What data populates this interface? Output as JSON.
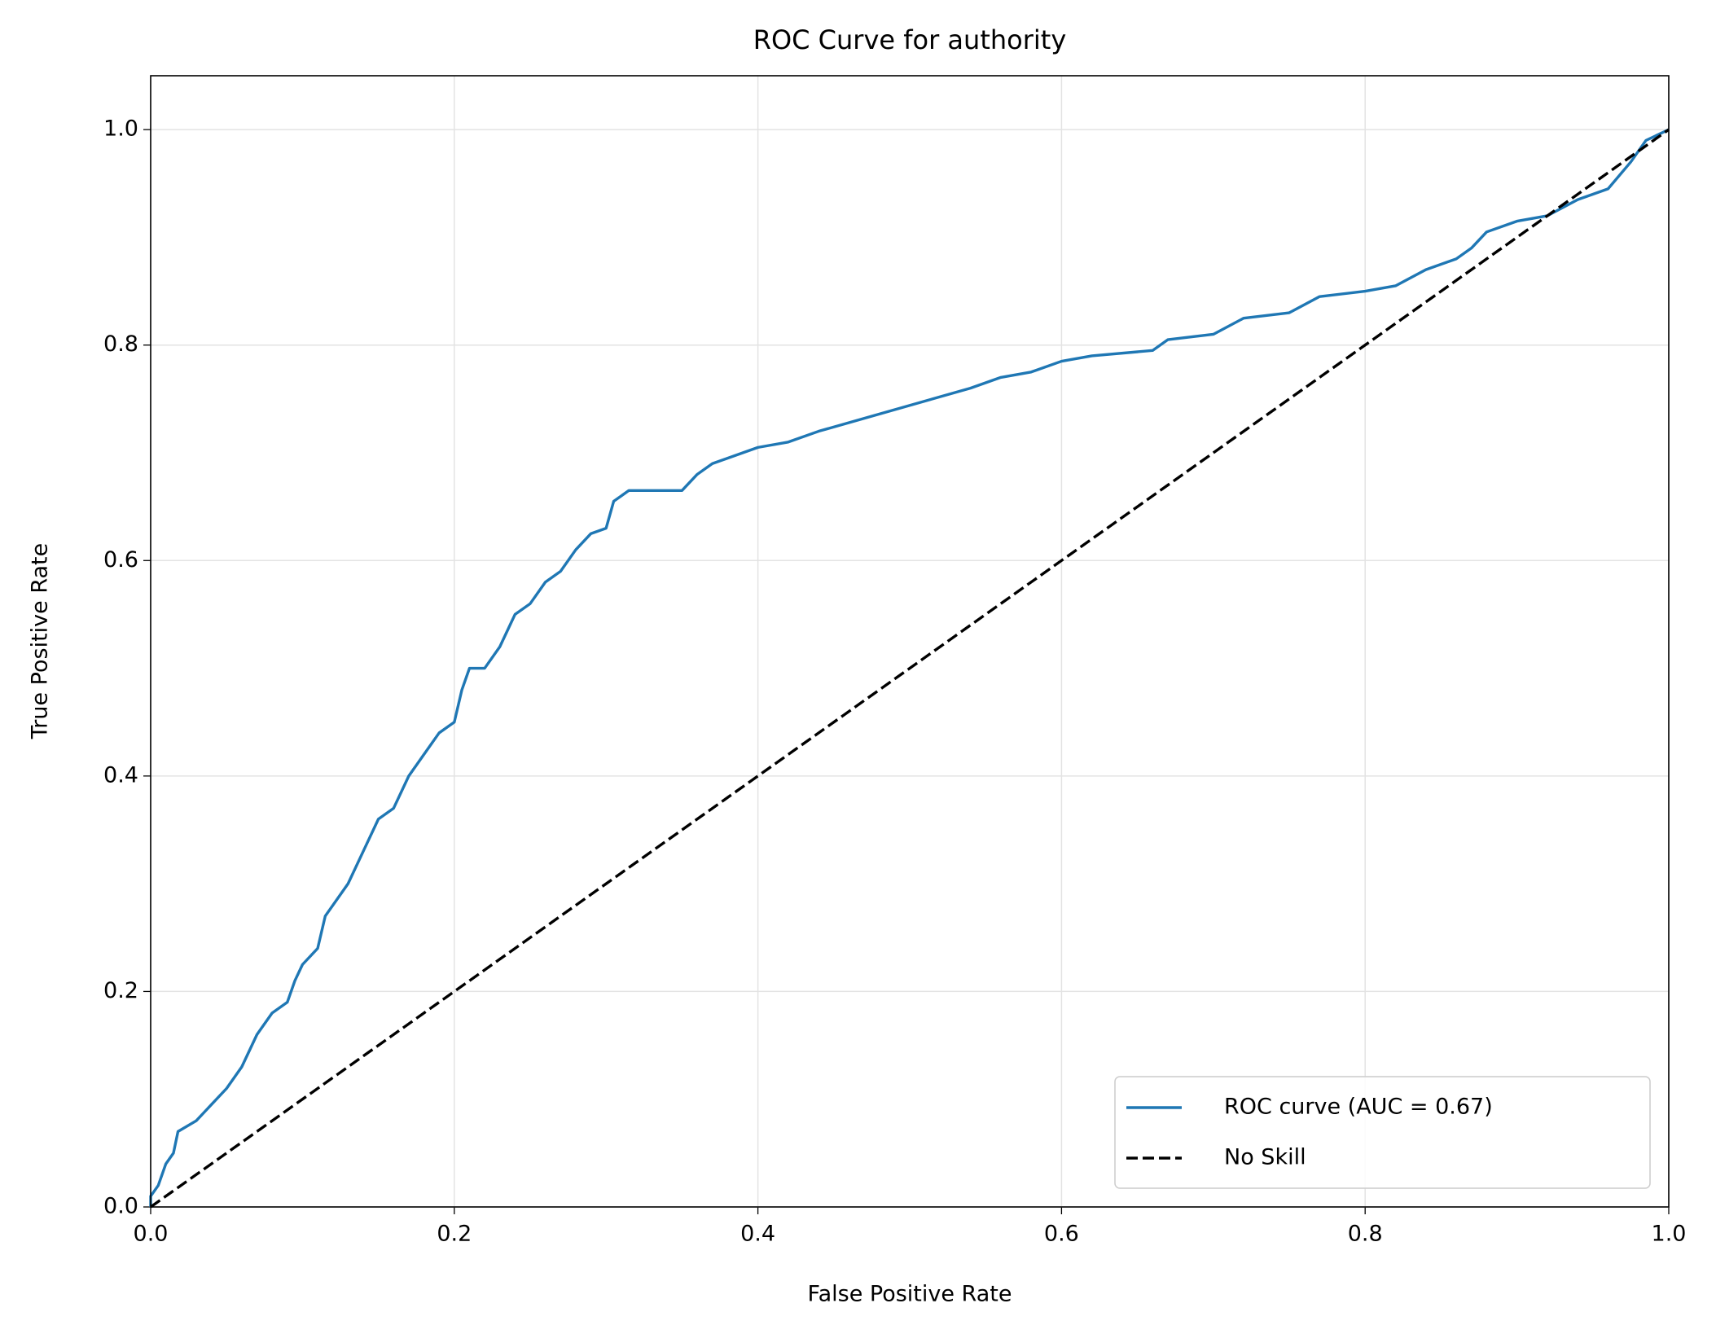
{
  "chart_data": {
    "type": "line",
    "title": "ROC Curve for authority",
    "x_label": "False Positive Rate",
    "y_label": "True Positive Rate",
    "xlim": [
      0,
      1
    ],
    "ylim": [
      0,
      1.05
    ],
    "xticks": [
      {
        "value": 0,
        "label": "0.0"
      },
      0.2,
      0.4,
      0.6,
      0.8,
      {
        "value": 1,
        "label": "1.0"
      }
    ],
    "yticks": [
      {
        "value": 0,
        "label": "0.0"
      },
      0.2,
      0.4,
      0.6,
      0.8,
      {
        "value": 1,
        "label": "1.0"
      }
    ],
    "grid": true,
    "legend": "lower right",
    "series": [
      {
        "name": "ROC curve (AUC = 0.67)",
        "color": "#1f77b4",
        "dash": "solid",
        "x": [
          0,
          0,
          0.005,
          0.01,
          0.015,
          0.018,
          0.03,
          0.04,
          0.05,
          0.06,
          0.07,
          0.08,
          0.09,
          0.095,
          0.1,
          0.11,
          0.115,
          0.125,
          0.13,
          0.14,
          0.15,
          0.16,
          0.17,
          0.18,
          0.19,
          0.2,
          0.205,
          0.21,
          0.22,
          0.23,
          0.24,
          0.25,
          0.26,
          0.27,
          0.28,
          0.29,
          0.3,
          0.305,
          0.315,
          0.35,
          0.36,
          0.37,
          0.39,
          0.4,
          0.42,
          0.44,
          0.54,
          0.56,
          0.58,
          0.6,
          0.62,
          0.66,
          0.67,
          0.7,
          0.72,
          0.75,
          0.77,
          0.8,
          0.82,
          0.84,
          0.86,
          0.87,
          0.88,
          0.9,
          0.92,
          0.94,
          0.96,
          0.975,
          0.985,
          1
        ],
        "values": [
          0,
          0.01,
          0.02,
          0.04,
          0.05,
          0.07,
          0.08,
          0.095,
          0.11,
          0.13,
          0.16,
          0.18,
          0.19,
          0.21,
          0.225,
          0.24,
          0.27,
          0.29,
          0.3,
          0.33,
          0.36,
          0.37,
          0.4,
          0.42,
          0.44,
          0.45,
          0.48,
          0.5,
          0.5,
          0.52,
          0.55,
          0.56,
          0.58,
          0.59,
          0.61,
          0.625,
          0.63,
          0.655,
          0.665,
          0.665,
          0.68,
          0.69,
          0.7,
          0.705,
          0.71,
          0.72,
          0.76,
          0.77,
          0.775,
          0.785,
          0.79,
          0.795,
          0.805,
          0.81,
          0.825,
          0.83,
          0.845,
          0.85,
          0.855,
          0.87,
          0.88,
          0.89,
          0.905,
          0.915,
          0.92,
          0.935,
          0.945,
          0.97,
          0.99,
          1
        ]
      },
      {
        "name": "No Skill",
        "color": "#000000",
        "dash": "dashed",
        "x": [
          0,
          1
        ],
        "values": [
          0,
          1
        ]
      }
    ]
  }
}
